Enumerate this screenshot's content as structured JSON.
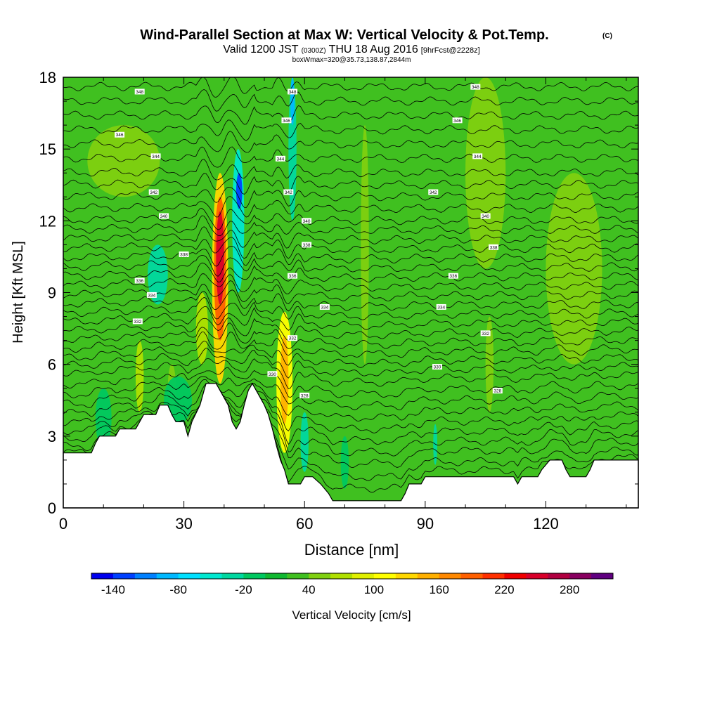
{
  "header": {
    "title": "Wind-Parallel Section at Max W: Vertical Velocity & Pot.Temp.",
    "copyright": "(C)",
    "valid_prefix": "Valid 1200 JST",
    "valid_utc": "(0300Z)",
    "valid_date": "THU 18 Aug 2016",
    "forecast_tag": "[9hrFcst@2228z]",
    "box_info": "boxWmax=320@35.73,138.87,2844m"
  },
  "chart_data": {
    "type": "heatmap",
    "title": "Wind-Parallel Section at Max W: Vertical Velocity & Pot.Temp.",
    "xlabel": "Distance [nm]",
    "ylabel": "Height [Kft MSL]",
    "xlim": [
      0,
      143
    ],
    "ylim": [
      0,
      18
    ],
    "x_ticks": [
      0,
      30,
      60,
      90,
      120
    ],
    "y_ticks": [
      0,
      3,
      6,
      9,
      12,
      15,
      18
    ],
    "colorbar": {
      "label": "Vertical Velocity [cm/s]",
      "tick_labels": [
        "-140",
        "-80",
        "-20",
        "40",
        "100",
        "160",
        "220",
        "280"
      ],
      "tick_values": [
        -140,
        -80,
        -20,
        40,
        100,
        160,
        220,
        280
      ],
      "min": -160,
      "max": 320,
      "colors": [
        "#0000ee",
        "#0040ff",
        "#0080ff",
        "#00b8ff",
        "#00e0ff",
        "#00e8d0",
        "#00d8a0",
        "#00c860",
        "#10b830",
        "#40c020",
        "#80d010",
        "#b0e000",
        "#e0f000",
        "#ffff00",
        "#ffd800",
        "#ffb000",
        "#ff8800",
        "#ff6000",
        "#ff3000",
        "#f00000",
        "#d8002a",
        "#b00040",
        "#880060",
        "#600080"
      ]
    },
    "background_value": 20,
    "cells": [
      {
        "x0": 37,
        "x1": 41,
        "y0": 5.2,
        "y1": 14,
        "v": 120
      },
      {
        "x0": 37.5,
        "x1": 40.5,
        "y0": 7,
        "y1": 13,
        "v": 190
      },
      {
        "x0": 38,
        "x1": 40,
        "y0": 8.5,
        "y1": 12.4,
        "v": 240
      },
      {
        "x0": 53,
        "x1": 57,
        "y0": 2.3,
        "y1": 8.2,
        "v": 110
      },
      {
        "x0": 54,
        "x1": 56,
        "y0": 3.5,
        "y1": 7.2,
        "v": 150
      },
      {
        "x0": 42,
        "x1": 45,
        "y0": 9,
        "y1": 15,
        "v": -60
      },
      {
        "x0": 43,
        "x1": 44.5,
        "y0": 12.5,
        "y1": 14,
        "v": -130
      },
      {
        "x0": 56,
        "x1": 58,
        "y0": 12,
        "y1": 18,
        "v": -40
      },
      {
        "x0": 56.5,
        "x1": 57.5,
        "y0": 16,
        "y1": 18,
        "v": -90
      },
      {
        "x0": 21,
        "x1": 26,
        "y0": 8.5,
        "y1": 11,
        "v": -30
      },
      {
        "x0": 33,
        "x1": 36,
        "y0": 6,
        "y1": 9,
        "v": 60
      },
      {
        "x0": 18,
        "x1": 20,
        "y0": 4,
        "y1": 7,
        "v": 60
      },
      {
        "x0": 26,
        "x1": 28,
        "y0": 4,
        "y1": 6,
        "v": 50
      },
      {
        "x0": 6,
        "x1": 24,
        "y0": 13,
        "y1": 16,
        "v": 40
      },
      {
        "x0": 100,
        "x1": 110,
        "y0": 10,
        "y1": 18,
        "v": 40
      },
      {
        "x0": 120,
        "x1": 134,
        "y0": 6,
        "y1": 14,
        "v": 40
      },
      {
        "x0": 105,
        "x1": 107,
        "y0": 4,
        "y1": 8,
        "v": 50
      },
      {
        "x0": 59,
        "x1": 61,
        "y0": 1.5,
        "y1": 4,
        "v": -30
      },
      {
        "x0": 69,
        "x1": 71,
        "y0": 0.8,
        "y1": 3,
        "v": -20
      },
      {
        "x0": 92,
        "x1": 93,
        "y0": 1.8,
        "y1": 3.5,
        "v": -30
      },
      {
        "x0": 74,
        "x1": 76,
        "y0": 6,
        "y1": 16,
        "v": 40
      },
      {
        "x0": 8,
        "x1": 12,
        "y0": 2.5,
        "y1": 5,
        "v": -10
      },
      {
        "x0": 25,
        "x1": 32,
        "y0": 3.5,
        "y1": 5.5,
        "v": -10
      }
    ],
    "terrain": [
      [
        0,
        2.3
      ],
      [
        7,
        2.3
      ],
      [
        8,
        2.7
      ],
      [
        9,
        3.0
      ],
      [
        13,
        3.0
      ],
      [
        14,
        3.3
      ],
      [
        18,
        3.3
      ],
      [
        19,
        3.6
      ],
      [
        20,
        3.9
      ],
      [
        23,
        3.9
      ],
      [
        24,
        4.3
      ],
      [
        26,
        4.3
      ],
      [
        27,
        3.9
      ],
      [
        28,
        3.6
      ],
      [
        30,
        3.6
      ],
      [
        31,
        3.0
      ],
      [
        31.5,
        3.3
      ],
      [
        32,
        3.6
      ],
      [
        34,
        4.3
      ],
      [
        35,
        4.9
      ],
      [
        35.5,
        5.2
      ],
      [
        38,
        5.2
      ],
      [
        39,
        4.9
      ],
      [
        40,
        4.6
      ],
      [
        41,
        4.3
      ],
      [
        42,
        3.6
      ],
      [
        43,
        3.3
      ],
      [
        44,
        3.6
      ],
      [
        45,
        4.3
      ],
      [
        46,
        4.9
      ],
      [
        47,
        5.2
      ],
      [
        48,
        4.9
      ],
      [
        49,
        4.6
      ],
      [
        50,
        4.3
      ],
      [
        51,
        3.9
      ],
      [
        52,
        3.3
      ],
      [
        53,
        2.6
      ],
      [
        54,
        2.0
      ],
      [
        55,
        1.6
      ],
      [
        56,
        1.0
      ],
      [
        59,
        1.0
      ],
      [
        60,
        1.3
      ],
      [
        62,
        1.3
      ],
      [
        64,
        1.0
      ],
      [
        66,
        0.6
      ],
      [
        67,
        0.3
      ],
      [
        70,
        0.3
      ],
      [
        75,
        0.3
      ],
      [
        84,
        0.3
      ],
      [
        85,
        0.6
      ],
      [
        86,
        1.0
      ],
      [
        89,
        1.0
      ],
      [
        90,
        1.3
      ],
      [
        100,
        1.3
      ],
      [
        112,
        1.3
      ],
      [
        113,
        1.0
      ],
      [
        114,
        1.3
      ],
      [
        118,
        1.3
      ],
      [
        119,
        1.6
      ],
      [
        121,
        2.0
      ],
      [
        124,
        2.0
      ],
      [
        125,
        1.6
      ],
      [
        126,
        1.3
      ],
      [
        128,
        1.3
      ],
      [
        130,
        1.3
      ],
      [
        131,
        1.6
      ],
      [
        132,
        2.0
      ],
      [
        143,
        2.0
      ]
    ],
    "isentrope_levels_kft": [
      0.6,
      1.1,
      1.7,
      2.2,
      2.7,
      3.2,
      3.7,
      4.2,
      4.7,
      5.2,
      5.6,
      6.0,
      6.4,
      6.8,
      7.2,
      7.6,
      8.0,
      8.4,
      8.8,
      9.2,
      9.6,
      10.0,
      10.4,
      10.8,
      11.2,
      11.6,
      12.0,
      12.5,
      13.0,
      13.5,
      14.0,
      14.6,
      15.2,
      15.8,
      16.4,
      17.0,
      17.6
    ],
    "contour_value_labels": [
      {
        "x": 19,
        "y": 17.4,
        "t": "348"
      },
      {
        "x": 14,
        "y": 15.6,
        "t": "346"
      },
      {
        "x": 23,
        "y": 14.7,
        "t": "344"
      },
      {
        "x": 22.5,
        "y": 13.2,
        "t": "342"
      },
      {
        "x": 25,
        "y": 12.2,
        "t": "340"
      },
      {
        "x": 30,
        "y": 10.6,
        "t": "338"
      },
      {
        "x": 19,
        "y": 9.5,
        "t": "336"
      },
      {
        "x": 22,
        "y": 8.9,
        "t": "334"
      },
      {
        "x": 18.5,
        "y": 7.8,
        "t": "332"
      },
      {
        "x": 57,
        "y": 17.4,
        "t": "348"
      },
      {
        "x": 55.5,
        "y": 16.2,
        "t": "346"
      },
      {
        "x": 54,
        "y": 14.6,
        "t": "344"
      },
      {
        "x": 56,
        "y": 13.2,
        "t": "342"
      },
      {
        "x": 60.5,
        "y": 12.0,
        "t": "340"
      },
      {
        "x": 60.5,
        "y": 11.0,
        "t": "338"
      },
      {
        "x": 57,
        "y": 9.7,
        "t": "336"
      },
      {
        "x": 65,
        "y": 8.4,
        "t": "334"
      },
      {
        "x": 57,
        "y": 7.1,
        "t": "332"
      },
      {
        "x": 52,
        "y": 5.6,
        "t": "330"
      },
      {
        "x": 60,
        "y": 4.7,
        "t": "328"
      },
      {
        "x": 102.5,
        "y": 17.6,
        "t": "348"
      },
      {
        "x": 98,
        "y": 16.2,
        "t": "346"
      },
      {
        "x": 103,
        "y": 14.7,
        "t": "344"
      },
      {
        "x": 92,
        "y": 13.2,
        "t": "342"
      },
      {
        "x": 105,
        "y": 12.2,
        "t": "340"
      },
      {
        "x": 107,
        "y": 10.9,
        "t": "338"
      },
      {
        "x": 97,
        "y": 9.7,
        "t": "336"
      },
      {
        "x": 94,
        "y": 8.4,
        "t": "334"
      },
      {
        "x": 105,
        "y": 7.3,
        "t": "332"
      },
      {
        "x": 93,
        "y": 5.9,
        "t": "330"
      },
      {
        "x": 108,
        "y": 4.9,
        "t": "328"
      }
    ]
  }
}
